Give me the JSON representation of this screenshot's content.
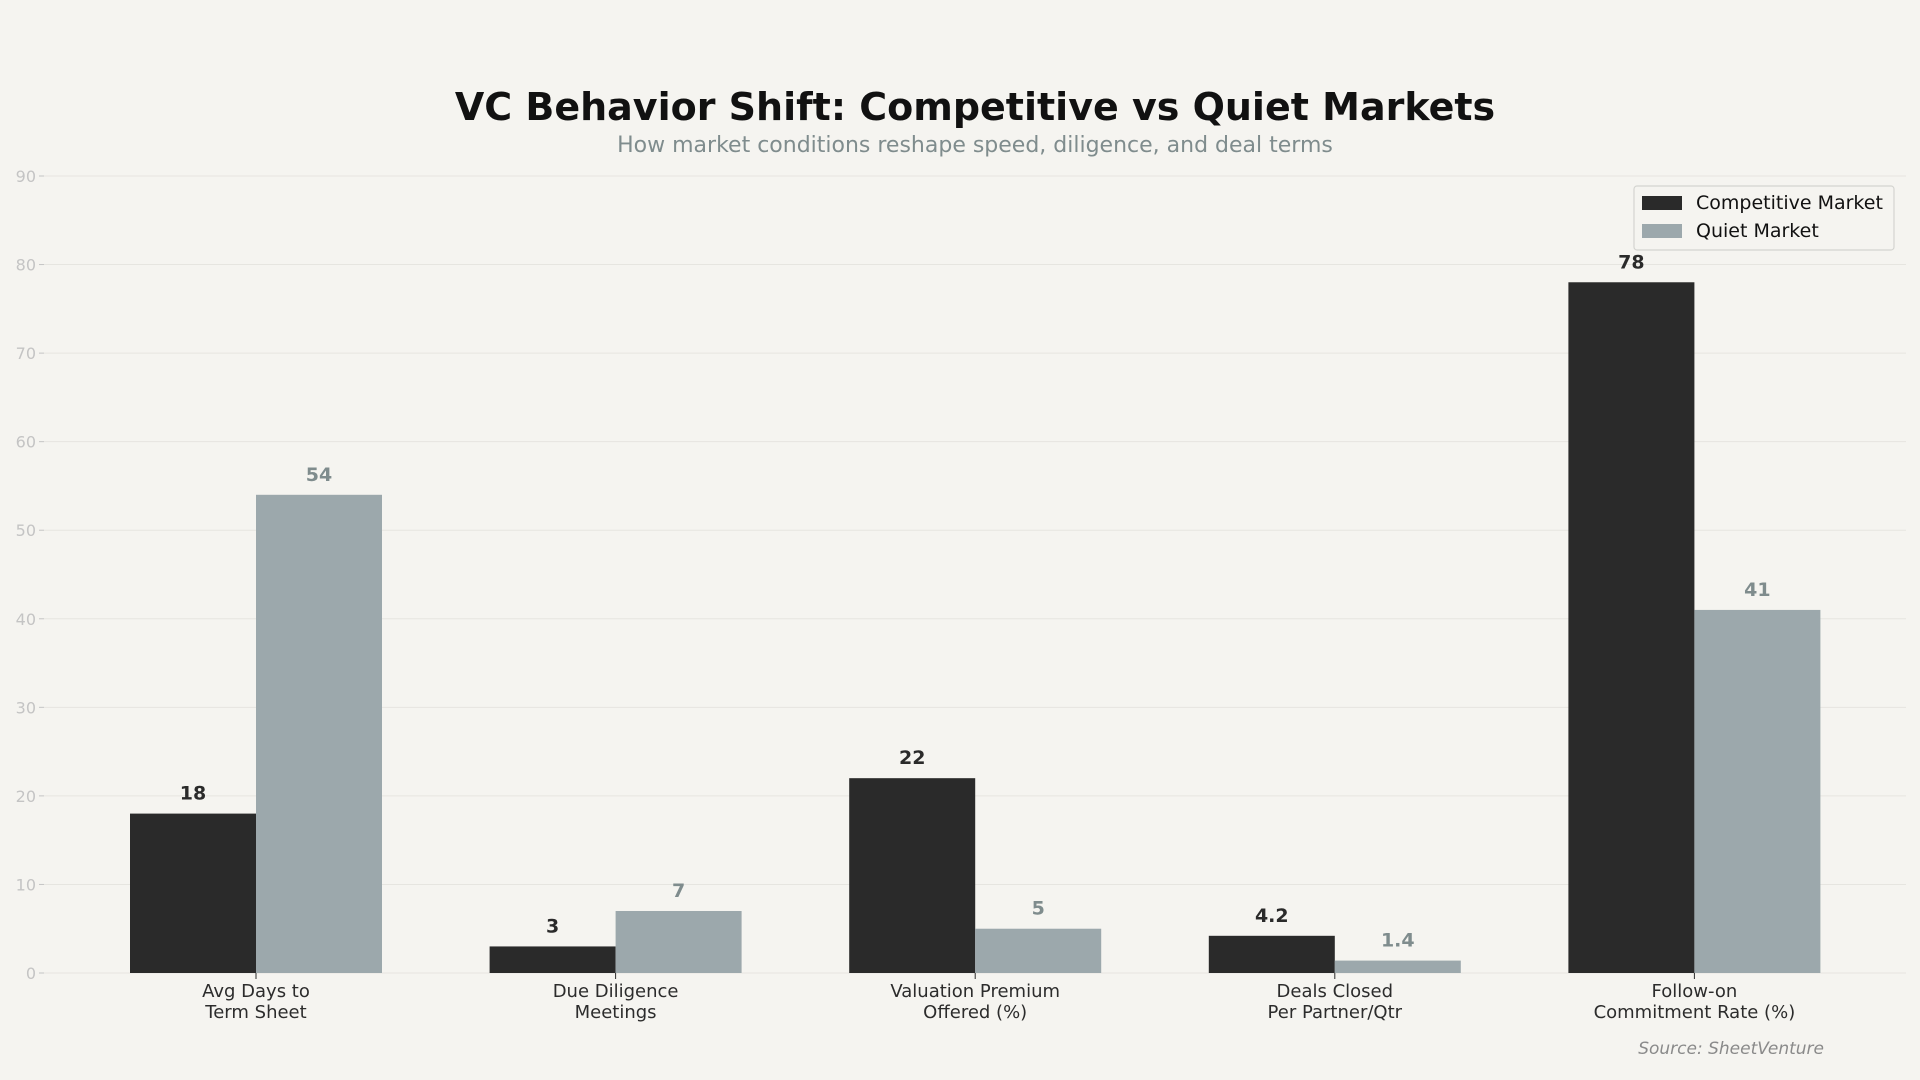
{
  "chart_data": {
    "type": "bar",
    "title": "VC Behavior Shift: Competitive vs Quiet Markets",
    "subtitle": "How market conditions reshape speed, diligence, and deal terms",
    "categories": [
      [
        "Avg Days to",
        "Term Sheet"
      ],
      [
        "Due Diligence",
        "Meetings"
      ],
      [
        "Valuation Premium",
        "Offered (%)"
      ],
      [
        "Deals Closed",
        "Per Partner/Qtr"
      ],
      [
        "Follow-on",
        "Commitment Rate (%)"
      ]
    ],
    "series": [
      {
        "name": "Competitive Market",
        "color": "#2a2a2a",
        "label_color": "#2a2a2a",
        "values": [
          18,
          3,
          22,
          4.2,
          78
        ],
        "labels": [
          "18",
          "3",
          "22",
          "4.2",
          "78"
        ]
      },
      {
        "name": "Quiet Market",
        "color": "#9ca8ac",
        "label_color": "#7f8c8d",
        "values": [
          54,
          7,
          5,
          1.4,
          41
        ],
        "labels": [
          "54",
          "7",
          "5",
          "1.4",
          "41"
        ]
      }
    ],
    "ylim": [
      0,
      90
    ],
    "yticks": [
      0,
      10,
      20,
      30,
      40,
      50,
      60,
      70,
      80,
      90
    ],
    "xlabel": "",
    "ylabel": "",
    "grid": true,
    "legend_position": "top-right",
    "source": "Source: SheetVenture"
  }
}
